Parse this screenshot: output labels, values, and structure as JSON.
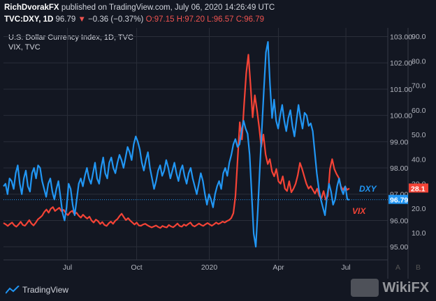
{
  "header": {
    "author": "RichDvorakFX",
    "published": "published on TradingView.com, July 06, 2020 14:26:49 UTC",
    "symbol": "TVC:DXY, 1D",
    "last": "96.79",
    "arrow": "▼",
    "change": "−0.36 (−0.37%)",
    "o_label": "O:",
    "o_value": "97.15",
    "h_label": "H:",
    "h_value": "97.20",
    "l_label": "L:",
    "l_value": "96.57",
    "c_label": "C:",
    "c_value": "96.79"
  },
  "legend": {
    "series1": "U.S. Dollar Currency Index, 1D, TVC",
    "series2": "VIX, TVC"
  },
  "colors": {
    "dxy": "#2196f3",
    "vix": "#f44336",
    "background": "#131722",
    "grid": "#2a2e39"
  },
  "chart_data": {
    "type": "line",
    "x_ticks": [
      "Jul",
      "Oct",
      "2020",
      "Apr",
      "Jul"
    ],
    "right_axis_dxy": {
      "ticks": [
        "103.00",
        "102.00",
        "101.00",
        "100.00",
        "99.00",
        "98.00",
        "97.00",
        "96.00",
        "95.00"
      ],
      "range": [
        94.5,
        103.2
      ]
    },
    "right_axis_vix": {
      "ticks": [
        "90.0",
        "80.0",
        "70.0",
        "60.0",
        "50.0",
        "40.0",
        "30.0",
        "20.0",
        "10.0"
      ],
      "range": [
        -1,
        92
      ]
    },
    "price_tags": {
      "dxy": "96.79",
      "vix": "28.1"
    },
    "axis_letters": {
      "a": "A",
      "b": "B"
    },
    "series": [
      {
        "name": "DXY",
        "values": [
          97.3,
          97.4,
          97.0,
          97.6,
          97.5,
          97.2,
          97.8,
          98.1,
          97.4,
          97.0,
          97.6,
          97.9,
          97.3,
          97.1,
          97.8,
          98.0,
          97.6,
          98.1,
          98.0,
          97.5,
          97.2,
          96.9,
          97.4,
          97.6,
          97.1,
          96.8,
          97.2,
          97.5,
          96.9,
          96.3,
          96.0,
          96.5,
          97.4,
          97.2,
          96.6,
          96.2,
          96.8,
          97.4,
          97.6,
          97.3,
          97.7,
          98.0,
          97.6,
          97.4,
          97.8,
          98.2,
          97.6,
          97.4,
          98.0,
          98.4,
          97.8,
          97.6,
          98.2,
          98.4,
          98.0,
          97.8,
          98.2,
          98.5,
          98.3,
          98.0,
          98.4,
          98.8,
          98.6,
          98.3,
          98.9,
          99.2,
          99.0,
          98.7,
          98.2,
          97.9,
          98.3,
          98.6,
          98.0,
          97.6,
          97.2,
          97.5,
          97.9,
          98.1,
          97.7,
          97.9,
          98.3,
          98.0,
          97.6,
          97.9,
          98.2,
          97.8,
          97.5,
          97.9,
          98.1,
          97.7,
          97.4,
          97.8,
          98.0,
          97.6,
          97.3,
          97.0,
          97.4,
          97.8,
          97.5,
          97.0,
          96.6,
          97.0,
          96.8,
          96.5,
          97.0,
          97.3,
          97.5,
          97.2,
          97.8,
          98.0,
          97.7,
          98.2,
          98.5,
          98.9,
          99.1,
          98.8,
          98.9,
          99.4,
          99.8,
          99.5,
          99.3,
          98.5,
          97.0,
          95.5,
          95.0,
          96.4,
          98.0,
          99.5,
          101.0,
          102.4,
          102.8,
          101.2,
          99.9,
          100.6,
          99.8,
          99.5,
          100.0,
          100.4,
          99.8,
          99.4,
          99.9,
          100.2,
          99.6,
          99.2,
          99.8,
          100.4,
          99.9,
          99.5,
          100.1,
          100.0,
          99.6,
          99.7,
          99.4,
          98.6,
          97.8,
          97.2,
          96.8,
          96.5,
          96.2,
          96.9,
          97.4,
          97.1,
          96.6,
          96.8,
          97.3,
          97.6,
          97.2,
          97.0,
          97.3,
          96.8,
          96.79
        ]
      },
      {
        "name": "VIX",
        "values": [
          14.0,
          13.5,
          12.8,
          13.6,
          14.2,
          13.1,
          12.5,
          13.4,
          14.5,
          13.2,
          12.9,
          14.0,
          15.2,
          13.8,
          13.0,
          14.1,
          15.5,
          16.2,
          17.0,
          18.5,
          19.5,
          18.2,
          19.8,
          20.5,
          18.9,
          19.6,
          20.2,
          18.8,
          19.4,
          18.0,
          17.2,
          18.4,
          19.0,
          17.6,
          18.2,
          17.0,
          16.2,
          17.4,
          16.5,
          15.8,
          16.6,
          15.0,
          14.2,
          15.4,
          14.8,
          13.6,
          14.4,
          13.2,
          12.8,
          13.9,
          14.6,
          13.7,
          14.9,
          15.6,
          16.8,
          17.8,
          16.4,
          15.2,
          16.0,
          15.0,
          14.2,
          13.4,
          14.2,
          13.0,
          12.9,
          13.4,
          13.7,
          13.1,
          12.6,
          12.2,
          12.6,
          13.0,
          12.4,
          12.0,
          12.8,
          12.4,
          12.2,
          13.2,
          12.6,
          12.3,
          13.0,
          13.8,
          12.8,
          12.5,
          13.4,
          12.9,
          13.6,
          14.2,
          13.0,
          12.6,
          13.2,
          13.8,
          13.2,
          12.8,
          13.5,
          14.0,
          13.4,
          12.9,
          13.5,
          14.2,
          13.6,
          14.0,
          14.6,
          14.2,
          14.8,
          15.2,
          16.0,
          18.0,
          25.0,
          40.0,
          55.0,
          48.0,
          62.0,
          75.0,
          82.5,
          70.0,
          57.0,
          66.0,
          60.0,
          53.0,
          45.0,
          50.0,
          42.0,
          38.0,
          40.0,
          35.0,
          33.0,
          36.0,
          31.0,
          30.0,
          33.0,
          28.0,
          27.0,
          31.0,
          26.5,
          28.0,
          30.0,
          33.5,
          38.5,
          36.0,
          33.0,
          30.0,
          28.0,
          29.0,
          27.5,
          26.0,
          28.0,
          25.0,
          24.0,
          27.0,
          23.5,
          25.0,
          36.0,
          40.0,
          36.0,
          34.0,
          32.5,
          29.0,
          27.5,
          28.8,
          27.5,
          28.1
        ]
      }
    ]
  },
  "branding": {
    "tradingview": "TradingView",
    "watermark": "WikiFX"
  }
}
